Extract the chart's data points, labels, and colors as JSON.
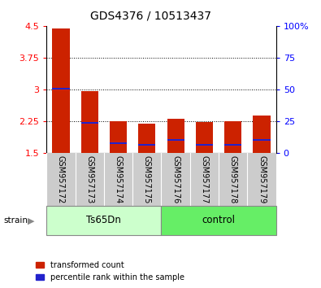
{
  "title": "GDS4376 / 10513437",
  "samples": [
    "GSM957172",
    "GSM957173",
    "GSM957174",
    "GSM957175",
    "GSM957176",
    "GSM957177",
    "GSM957178",
    "GSM957179"
  ],
  "red_values": [
    4.43,
    2.95,
    2.24,
    2.19,
    2.3,
    2.22,
    2.25,
    2.37
  ],
  "blue_values": [
    3.02,
    2.2,
    1.72,
    1.68,
    1.8,
    1.68,
    1.68,
    1.8
  ],
  "ymin": 1.5,
  "ymax": 4.5,
  "yticks_left": [
    1.5,
    2.25,
    3.0,
    3.75,
    4.5
  ],
  "yticks_right": [
    0,
    25,
    50,
    75,
    100
  ],
  "ytick_labels_left": [
    "1.5",
    "2.25",
    "3",
    "3.75",
    "4.5"
  ],
  "ytick_labels_right": [
    "0",
    "25",
    "50",
    "75",
    "100%"
  ],
  "group1_label": "Ts65Dn",
  "group2_label": "control",
  "group1_indices": [
    0,
    1,
    2,
    3
  ],
  "group2_indices": [
    4,
    5,
    6,
    7
  ],
  "bar_bottom": 1.5,
  "bar_color": "#cc2200",
  "blue_color": "#2222cc",
  "legend_red": "transformed count",
  "legend_blue": "percentile rank within the sample",
  "group_label": "strain",
  "group1_bg": "#ccffcc",
  "group2_bg": "#66ee66",
  "tick_bg": "#cccccc",
  "title_fontsize": 10,
  "axis_fontsize": 8,
  "tick_label_fontsize": 7
}
